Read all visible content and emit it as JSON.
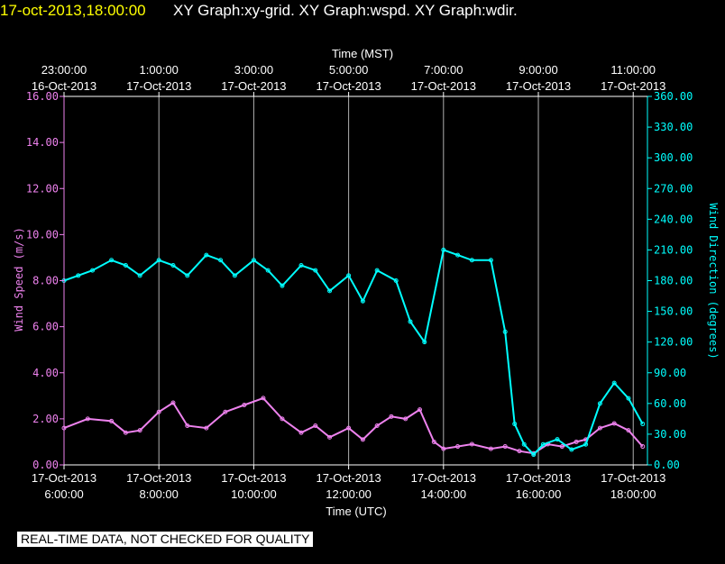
{
  "header": {
    "timestamp": "17-oct-2013,18:00:00",
    "title": "XY Graph:xy-grid.  XY Graph:wspd.  XY Graph:wdir."
  },
  "footer": {
    "disclaimer": "REAL-TIME DATA, NOT CHECKED FOR QUALITY"
  },
  "chart_data": {
    "type": "line",
    "xlabel_top": "Time (MST)",
    "xlabel_bottom": "Time (UTC)",
    "ylabel_left": "Wind Speed (m/s)",
    "ylabel_right": "Wind Direction (degrees)",
    "x_range_utc_hours": [
      6.0,
      18.3
    ],
    "ylim_left": [
      0,
      16
    ],
    "ylim_right": [
      0,
      360
    ],
    "grid": "vertical",
    "x_ticks_top": [
      {
        "x": 6,
        "time": "23:00:00",
        "date": "16-Oct-2013"
      },
      {
        "x": 8,
        "time": "1:00:00",
        "date": "17-Oct-2013"
      },
      {
        "x": 10,
        "time": "3:00:00",
        "date": "17-Oct-2013"
      },
      {
        "x": 12,
        "time": "5:00:00",
        "date": "17-Oct-2013"
      },
      {
        "x": 14,
        "time": "7:00:00",
        "date": "17-Oct-2013"
      },
      {
        "x": 16,
        "time": "9:00:00",
        "date": "17-Oct-2013"
      },
      {
        "x": 18,
        "time": "11:00:00",
        "date": "17-Oct-2013"
      }
    ],
    "x_ticks_bottom": [
      {
        "x": 6,
        "date": "17-Oct-2013",
        "time": "6:00:00"
      },
      {
        "x": 8,
        "date": "17-Oct-2013",
        "time": "8:00:00"
      },
      {
        "x": 10,
        "date": "17-Oct-2013",
        "time": "10:00:00"
      },
      {
        "x": 12,
        "date": "17-Oct-2013",
        "time": "12:00:00"
      },
      {
        "x": 14,
        "date": "17-Oct-2013",
        "time": "14:00:00"
      },
      {
        "x": 16,
        "date": "17-Oct-2013",
        "time": "16:00:00"
      },
      {
        "x": 18,
        "date": "17-Oct-2013",
        "time": "18:00:00"
      }
    ],
    "y_ticks_left": [
      "0.00",
      "2.00",
      "4.00",
      "6.00",
      "8.00",
      "10.00",
      "12.00",
      "14.00",
      "16.00"
    ],
    "y_ticks_right": [
      "0.00",
      "30.00",
      "60.00",
      "90.00",
      "120.00",
      "150.00",
      "180.00",
      "210.00",
      "240.00",
      "270.00",
      "300.00",
      "330.00",
      "360.00"
    ],
    "series": [
      {
        "color": "#ee82ee",
        "axis": "left",
        "x": [
          6.0,
          6.5,
          7.0,
          7.3,
          7.6,
          8.0,
          8.3,
          8.6,
          9.0,
          9.4,
          9.8,
          10.2,
          10.6,
          11.0,
          11.3,
          11.6,
          12.0,
          12.3,
          12.6,
          12.9,
          13.2,
          13.5,
          13.8,
          14.0,
          14.3,
          14.6,
          15.0,
          15.3,
          15.6,
          15.9,
          16.2,
          16.5,
          16.8,
          17.0,
          17.3,
          17.6,
          17.9,
          18.2
        ],
        "values": [
          1.6,
          2.0,
          1.9,
          1.4,
          1.5,
          2.3,
          2.7,
          1.7,
          1.6,
          2.3,
          2.6,
          2.9,
          2.0,
          1.4,
          1.7,
          1.2,
          1.6,
          1.1,
          1.7,
          2.1,
          2.0,
          2.4,
          1.0,
          0.7,
          0.8,
          0.9,
          0.7,
          0.8,
          0.6,
          0.5,
          0.9,
          0.8,
          1.0,
          1.1,
          1.6,
          1.8,
          1.5,
          0.8
        ]
      },
      {
        "color": "#00ffff",
        "axis": "right",
        "x": [
          6.0,
          6.3,
          6.6,
          7.0,
          7.3,
          7.6,
          8.0,
          8.3,
          8.6,
          9.0,
          9.3,
          9.6,
          10.0,
          10.3,
          10.6,
          11.0,
          11.3,
          11.6,
          12.0,
          12.3,
          12.6,
          13.0,
          13.3,
          13.6,
          14.0,
          14.3,
          14.6,
          15.0,
          15.3,
          15.5,
          15.7,
          15.9,
          16.1,
          16.4,
          16.7,
          17.0,
          17.3,
          17.6,
          17.9,
          18.2
        ],
        "values": [
          180,
          185,
          190,
          200,
          195,
          185,
          200,
          195,
          185,
          205,
          200,
          185,
          200,
          190,
          175,
          195,
          190,
          170,
          185,
          160,
          190,
          180,
          140,
          120,
          210,
          205,
          200,
          200,
          130,
          40,
          20,
          10,
          20,
          25,
          15,
          20,
          60,
          80,
          65,
          40
        ]
      }
    ]
  }
}
